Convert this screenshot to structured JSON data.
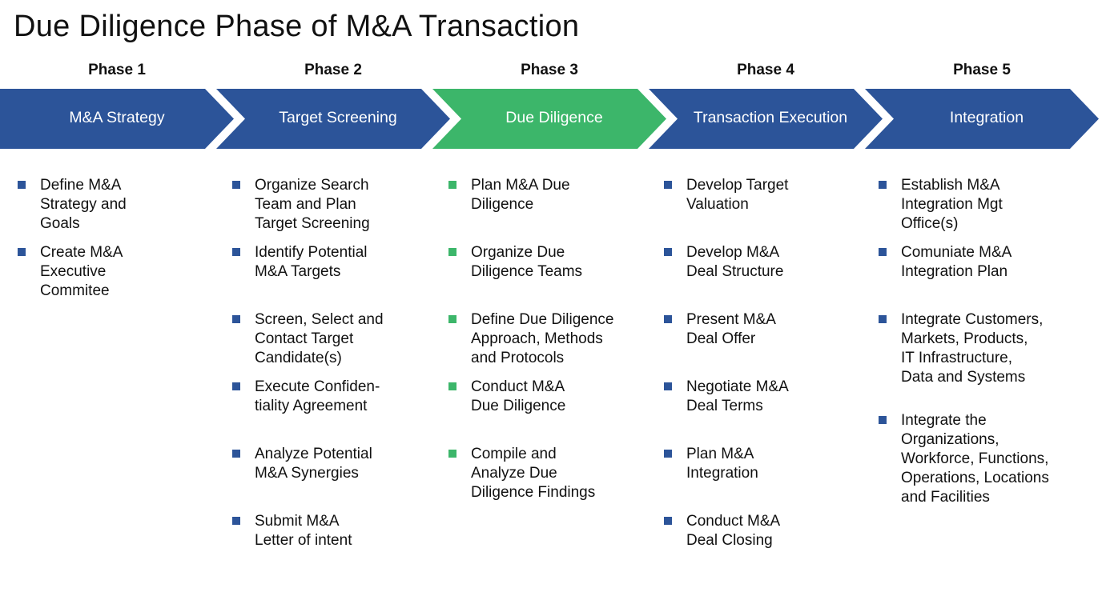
{
  "title": "Due Diligence Phase of M&A Transaction",
  "colors": {
    "default": "#2c5499",
    "active": "#3cb66a"
  },
  "phases": [
    {
      "label": "Phase 1",
      "name": "M&A Strategy",
      "active": false,
      "items": [
        "Define M&A\nStrategy and\nGoals",
        "Create M&A\nExecutive\nCommitee"
      ]
    },
    {
      "label": "Phase 2",
      "name": "Target Screening",
      "active": false,
      "items": [
        "Organize Search\nTeam and Plan\nTarget Screening",
        "Identify Potential\nM&A Targets",
        "Screen, Select and\nContact Target\nCandidate(s)",
        "Execute Confiden-\ntiality Agreement",
        "Analyze Potential\nM&A Synergies",
        "Submit M&A\nLetter of intent"
      ]
    },
    {
      "label": "Phase 3",
      "name": "Due Diligence",
      "active": true,
      "items": [
        "Plan M&A Due\nDiligence",
        "Organize Due\nDiligence Teams",
        "Define Due Diligence\nApproach, Methods\nand Protocols",
        "Conduct M&A\nDue Diligence",
        "Compile and\nAnalyze Due\nDiligence Findings"
      ]
    },
    {
      "label": "Phase 4",
      "name": "Transaction Execution",
      "active": false,
      "items": [
        "Develop Target\nValuation",
        "Develop M&A\nDeal Structure",
        "Present M&A\nDeal Offer",
        "Negotiate M&A\nDeal Terms",
        "Plan M&A\nIntegration",
        "Conduct M&A\nDeal Closing"
      ]
    },
    {
      "label": "Phase 5",
      "name": "Integration",
      "active": false,
      "items": [
        "Establish M&A\nIntegration Mgt\nOffice(s)",
        "Comuniate M&A\nIntegration Plan",
        "Integrate Customers,\nMarkets, Products,\nIT Infrastructure,\nData and Systems",
        "Integrate the\nOrganizations,\nWorkforce, Functions,\nOperations, Locations\nand Facilities"
      ]
    }
  ]
}
